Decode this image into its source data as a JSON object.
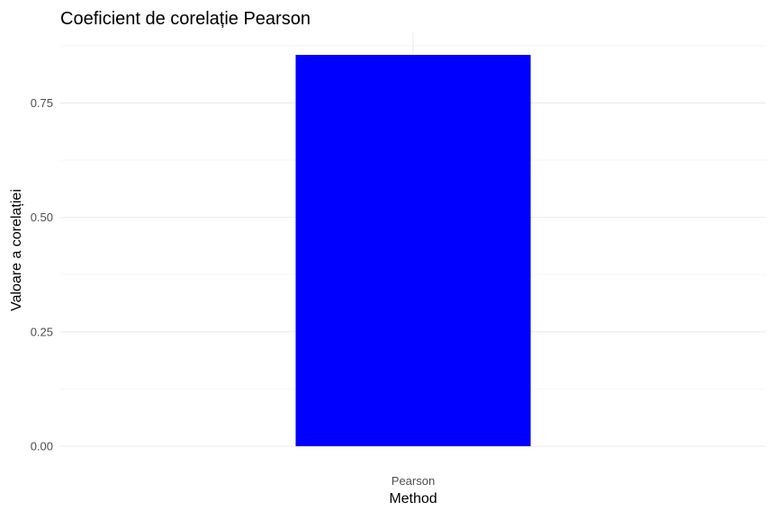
{
  "chart_data": {
    "type": "bar",
    "title": "Coeficient de corelație Pearson",
    "xlabel": "Method",
    "ylabel": "Valoare a corelației",
    "categories": [
      "Pearson"
    ],
    "values": [
      0.855
    ],
    "ylim": [
      0,
      0.855
    ],
    "yticks": [
      "0.00",
      "0.25",
      "0.50",
      "0.75"
    ],
    "grid": true,
    "legend": "none",
    "bar_color": "#0000ff"
  }
}
